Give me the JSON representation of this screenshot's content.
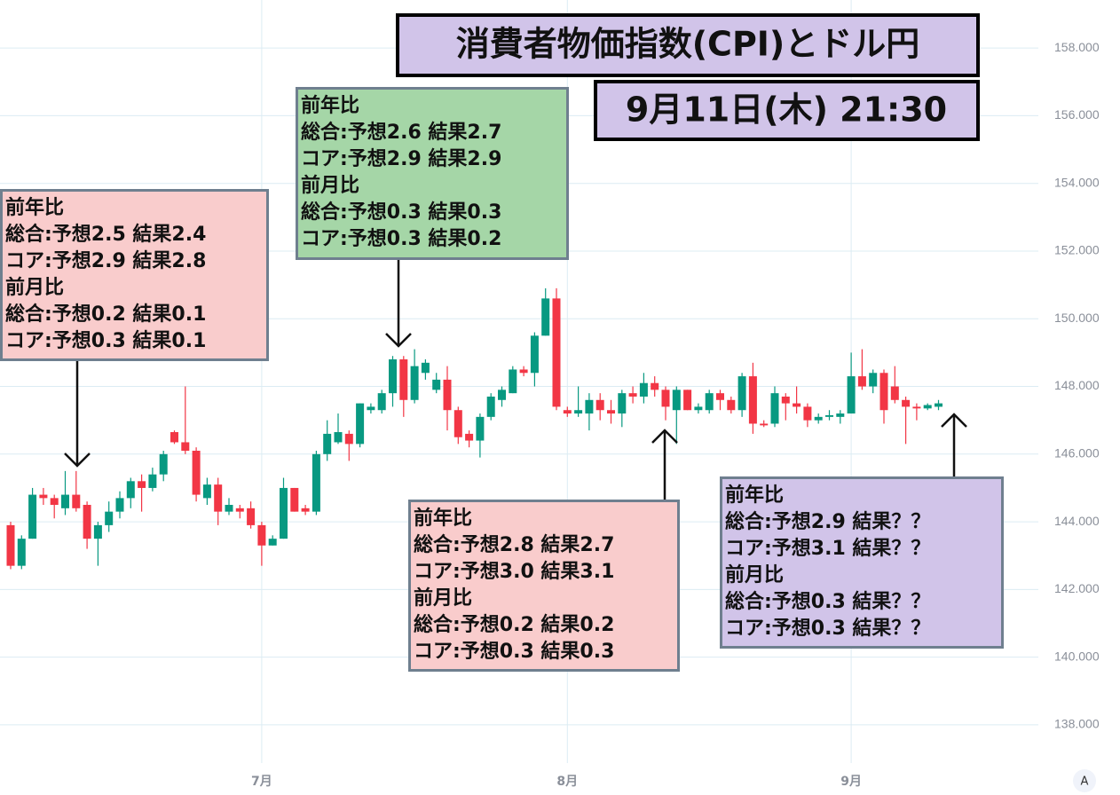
{
  "chart_data": {
    "type": "candlestick",
    "title": "消費者物価指数(CPI)とドル円",
    "subtitle": "9月11日(木) 21:30",
    "categories": [
      null,
      null,
      null,
      null,
      null,
      null,
      null,
      null,
      null,
      null,
      null,
      null,
      null,
      null,
      null,
      null,
      null,
      null,
      null,
      null,
      null,
      null,
      null,
      "7月",
      null,
      null,
      null,
      null,
      null,
      null,
      null,
      null,
      null,
      null,
      null,
      null,
      null,
      null,
      null,
      null,
      null,
      null,
      null,
      null,
      null,
      null,
      null,
      null,
      null,
      null,
      null,
      "8月",
      null,
      null,
      null,
      null,
      null,
      null,
      null,
      null,
      null,
      null,
      null,
      null,
      null,
      null,
      null,
      null,
      null,
      null,
      null,
      null,
      null,
      null,
      null,
      null,
      null,
      "9月",
      null,
      null,
      null,
      null,
      null,
      null,
      null,
      null
    ],
    "open": [
      143.9,
      142.7,
      143.5,
      144.8,
      144.7,
      144.4,
      144.8,
      144.5,
      143.5,
      143.9,
      144.3,
      144.7,
      145.2,
      145.0,
      145.4,
      146.65,
      146.35,
      146.1,
      144.7,
      145.1,
      144.3,
      144.4,
      144.4,
      143.9,
      143.3,
      143.5,
      145.0,
      144.4,
      144.3,
      146.0,
      146.35,
      146.6,
      146.3,
      147.3,
      147.3,
      147.8,
      148.8,
      147.6,
      148.4,
      147.9,
      148.2,
      147.3,
      146.6,
      146.4,
      147.1,
      147.6,
      147.8,
      148.5,
      148.4,
      149.5,
      150.6,
      147.3,
      147.2,
      147.2,
      147.6,
      147.3,
      147.2,
      147.8,
      147.7,
      148.1,
      147.9,
      147.3,
      147.9,
      147.3,
      147.3,
      147.8,
      147.6,
      147.3,
      148.3,
      146.9,
      146.9,
      147.7,
      147.5,
      147.4,
      147.0,
      147.1,
      147.1,
      147.2,
      148.3,
      148.0,
      148.4,
      148.0,
      147.6,
      147.4,
      147.35,
      147.4
    ],
    "high": [
      144.0,
      143.6,
      145.0,
      145.0,
      144.8,
      145.5,
      145.5,
      144.6,
      144.0,
      144.6,
      144.9,
      145.3,
      145.4,
      145.6,
      146.1,
      146.7,
      148.0,
      146.2,
      145.3,
      145.3,
      144.7,
      144.5,
      144.6,
      144.0,
      143.6,
      145.3,
      145.0,
      144.5,
      146.1,
      147.0,
      147.2,
      146.7,
      147.5,
      147.5,
      147.9,
      148.9,
      148.9,
      149.1,
      148.8,
      148.4,
      148.6,
      147.4,
      146.7,
      147.2,
      147.8,
      148.0,
      148.6,
      148.6,
      149.6,
      150.9,
      150.9,
      147.4,
      148.0,
      147.8,
      147.8,
      147.6,
      147.9,
      148.0,
      148.4,
      148.3,
      148.0,
      148.0,
      147.9,
      147.5,
      147.9,
      147.9,
      147.7,
      148.4,
      148.7,
      147.0,
      148.0,
      147.8,
      148.0,
      147.5,
      147.2,
      147.3,
      147.3,
      149.0,
      149.1,
      148.5,
      148.5,
      148.6,
      147.7,
      147.5,
      147.5,
      147.6
    ],
    "low": [
      142.6,
      142.6,
      143.5,
      144.5,
      144.1,
      144.2,
      144.3,
      143.2,
      142.7,
      143.7,
      144.1,
      144.4,
      144.3,
      144.9,
      145.2,
      146.3,
      146.0,
      144.6,
      144.5,
      143.9,
      144.2,
      144.1,
      143.8,
      142.7,
      143.3,
      143.5,
      144.3,
      144.2,
      144.2,
      145.8,
      146.3,
      145.8,
      146.2,
      147.2,
      147.2,
      147.4,
      147.1,
      147.5,
      148.2,
      147.8,
      146.7,
      146.3,
      146.2,
      145.9,
      147.0,
      147.4,
      147.8,
      148.3,
      148.0,
      149.5,
      147.3,
      147.1,
      147.1,
      146.7,
      147.0,
      146.9,
      146.8,
      147.5,
      147.5,
      147.7,
      147.0,
      146.3,
      147.3,
      147.2,
      147.2,
      147.3,
      147.2,
      147.1,
      146.6,
      146.8,
      146.8,
      147.0,
      147.2,
      146.8,
      146.9,
      147.0,
      146.9,
      147.2,
      147.9,
      147.8,
      146.9,
      147.5,
      146.3,
      147.0,
      147.3,
      147.3
    ],
    "close": [
      142.7,
      143.5,
      144.8,
      144.7,
      144.5,
      144.8,
      144.4,
      143.5,
      143.9,
      144.3,
      144.7,
      145.2,
      145.0,
      145.4,
      146.0,
      146.35,
      146.1,
      144.8,
      145.1,
      144.3,
      144.5,
      144.3,
      143.9,
      143.3,
      143.5,
      145.0,
      144.3,
      144.3,
      146.0,
      146.6,
      146.65,
      146.3,
      147.5,
      147.4,
      147.8,
      148.8,
      147.6,
      148.6,
      148.7,
      148.2,
      147.3,
      146.5,
      146.4,
      147.1,
      147.7,
      147.9,
      148.5,
      148.4,
      149.5,
      150.6,
      147.4,
      147.2,
      147.3,
      147.6,
      147.3,
      147.2,
      147.8,
      147.7,
      148.1,
      147.9,
      147.4,
      147.9,
      147.3,
      147.4,
      147.8,
      147.6,
      147.3,
      148.3,
      146.9,
      146.85,
      147.8,
      147.5,
      147.4,
      147.0,
      147.1,
      147.15,
      147.2,
      148.3,
      148.0,
      148.4,
      147.3,
      147.6,
      147.4,
      147.35,
      147.45,
      147.5
    ],
    "up_color": "#089981",
    "down_color": "#f23645",
    "ylim": [
      136.87,
      159.42
    ],
    "yticks": [
      {
        "value": 138,
        "label": "138.000"
      },
      {
        "value": 140,
        "label": "140.000"
      },
      {
        "value": 142,
        "label": "142.000"
      },
      {
        "value": 144,
        "label": "144.000"
      },
      {
        "value": 146,
        "label": "146.000"
      },
      {
        "value": 148,
        "label": "148.000"
      },
      {
        "value": 150,
        "label": "150.000"
      },
      {
        "value": 152,
        "label": "152.000"
      },
      {
        "value": 154,
        "label": "154.000"
      },
      {
        "value": 156,
        "label": "156.000"
      },
      {
        "value": 158,
        "label": "158.000"
      }
    ],
    "grid": true,
    "annotations": [
      {
        "color": "#f9cccc",
        "lines": [
          "前年比",
          "総合:予想2.5 結果2.4",
          "コア:予想2.9 結果2.8",
          "前月比",
          "総合:予想0.2 結果0.1",
          "コア:予想0.3 結果0.1"
        ]
      },
      {
        "color": "#a5d6a7",
        "lines": [
          "前年比",
          "総合:予想2.6 結果2.7",
          "コア:予想2.9 結果2.9",
          "前月比",
          "総合:予想0.3 結果0.3",
          "コア:予想0.3 結果0.2"
        ]
      },
      {
        "color": "#f9cccc",
        "lines": [
          "前年比",
          "総合:予想2.8 結果2.7",
          "コア:予想3.0 結果3.1",
          "前月比",
          "総合:予想0.2 結果0.2",
          "コア:予想0.3 結果0.3"
        ]
      },
      {
        "color": "#d1c4e9",
        "lines": [
          "前年比",
          "総合:予想2.9 結果？？",
          "コア:予想3.1 結果？？",
          "前月比",
          "総合:予想0.3 結果？？",
          "コア:予想0.3 結果？？"
        ]
      }
    ],
    "title_color": "#d1c4e9",
    "scale_button": "A"
  }
}
